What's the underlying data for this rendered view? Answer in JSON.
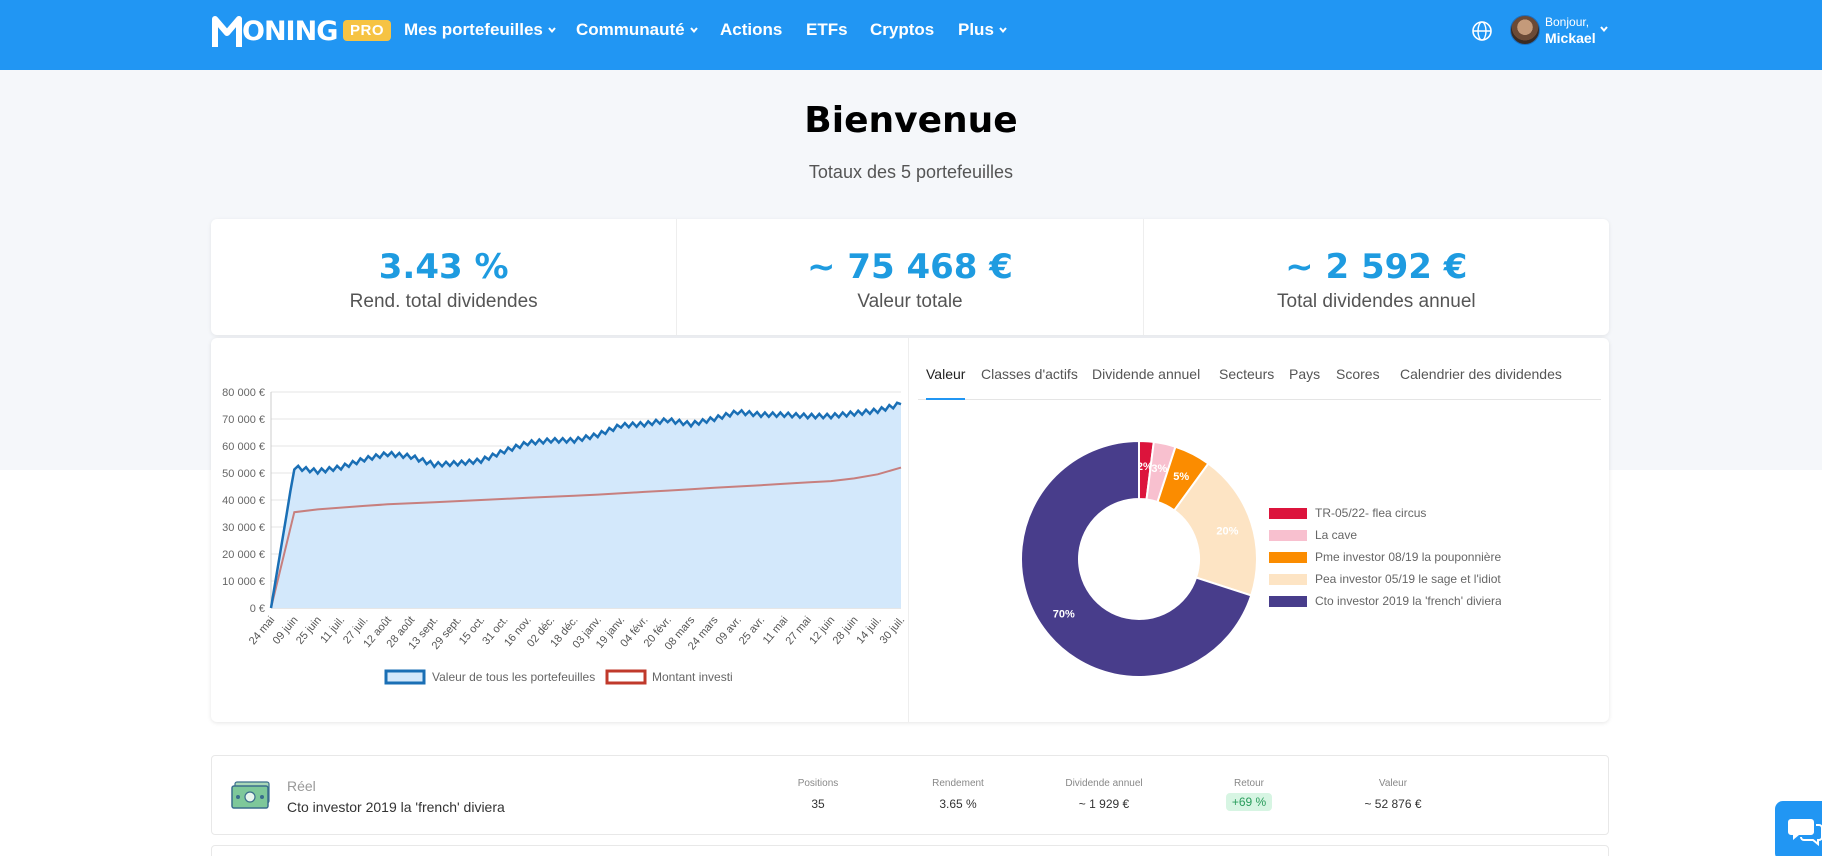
{
  "nav": {
    "logo_text": "ONING",
    "pro_badge": "PRO",
    "items": [
      {
        "label": "Mes portefeuilles",
        "dropdown": true
      },
      {
        "label": "Communauté",
        "dropdown": true
      },
      {
        "label": "Actions",
        "dropdown": false
      },
      {
        "label": "ETFs",
        "dropdown": false
      },
      {
        "label": "Cryptos",
        "dropdown": false
      },
      {
        "label": "Plus",
        "dropdown": true
      }
    ],
    "greeting": "Bonjour,",
    "user_name": "Mickael",
    "accent_color": "#2196f3"
  },
  "header": {
    "title": "Bienvenue",
    "subtitle": "Totaux des 5 portefeuilles"
  },
  "stats": [
    {
      "value": "3.43 %",
      "label": "Rend. total dividendes"
    },
    {
      "value": "~ 75 468 €",
      "label": "Valeur totale"
    },
    {
      "value": "~ 2 592 €",
      "label": "Total dividendes annuel"
    }
  ],
  "tabs": [
    {
      "label": "Valeur",
      "active": true
    },
    {
      "label": "Classes d'actifs",
      "active": false
    },
    {
      "label": "Dividende annuel",
      "active": false
    },
    {
      "label": "Secteurs",
      "active": false
    },
    {
      "label": "Pays",
      "active": false
    },
    {
      "label": "Scores",
      "active": false
    },
    {
      "label": "Calendrier des dividendes",
      "active": false
    }
  ],
  "chart_data": [
    {
      "type": "line",
      "x": [
        "24 mai",
        "09 juin",
        "25 juin",
        "11 juil.",
        "27 juil.",
        "12 août",
        "28 août",
        "13 sept.",
        "29 sept.",
        "15 oct.",
        "31 oct.",
        "16 nov.",
        "02 déc.",
        "18 déc.",
        "03 janv.",
        "19 janv.",
        "04 févr.",
        "20 févr.",
        "08 mars",
        "24 mars",
        "09 avr.",
        "25 avr.",
        "11 mai",
        "27 mai",
        "12 juin",
        "28 juin",
        "14 juil.",
        "30 juil."
      ],
      "series": [
        {
          "name": "Valeur de tous les portefeuilles",
          "color": "#1a6fb5",
          "fill": "#d3e8fb",
          "values": [
            0,
            52000,
            50500,
            52000,
            55000,
            57000,
            56000,
            53000,
            53500,
            54500,
            58000,
            61000,
            62000,
            62000,
            64000,
            67500,
            68000,
            69500,
            68000,
            70000,
            72500,
            71500,
            71500,
            71000,
            71000,
            72000,
            73000,
            75500
          ]
        },
        {
          "name": "Montant investi",
          "color": "#c0392b",
          "values": [
            0,
            35500,
            36500,
            37200,
            37800,
            38400,
            38800,
            39200,
            39600,
            40000,
            40400,
            40800,
            41200,
            41600,
            42000,
            42500,
            43000,
            43500,
            44000,
            44500,
            45000,
            45500,
            46000,
            46500,
            47000,
            48000,
            49500,
            52000
          ]
        }
      ],
      "yticks": [
        "0 €",
        "10 000 €",
        "20 000 €",
        "30 000 €",
        "40 000 €",
        "50 000 €",
        "60 000 €",
        "70 000 €",
        "80 000 €"
      ],
      "ylim": [
        0,
        80000
      ],
      "legend_position": "bottom"
    },
    {
      "type": "pie",
      "donut": true,
      "categories": [
        "TR-05/22- flea circus",
        "La cave",
        "Pme investor 08/19 la pouponnière",
        "Pea investor 05/19 le sage et l'idiot",
        "Cto investor 2019 la 'french' diviera"
      ],
      "values": [
        2,
        3,
        5,
        20,
        70
      ],
      "labels": [
        "2%",
        "3%",
        "5%",
        "20%",
        "70%"
      ],
      "colors": [
        "#dc143c",
        "#f8c0cf",
        "#fb8c00",
        "#fde4c4",
        "#483d8b"
      ],
      "legend_position": "right"
    }
  ],
  "portfolio": {
    "type": "Réel",
    "name": "Cto investor 2019 la 'french' diviera",
    "columns": [
      {
        "header": "Positions",
        "value": "35"
      },
      {
        "header": "Rendement",
        "value": "3.65 %"
      },
      {
        "header": "Dividende annuel",
        "value": "~ 1 929 €"
      },
      {
        "header": "Retour",
        "value": "+69 %"
      },
      {
        "header": "Valeur",
        "value": "~ 52 876 €"
      }
    ]
  }
}
